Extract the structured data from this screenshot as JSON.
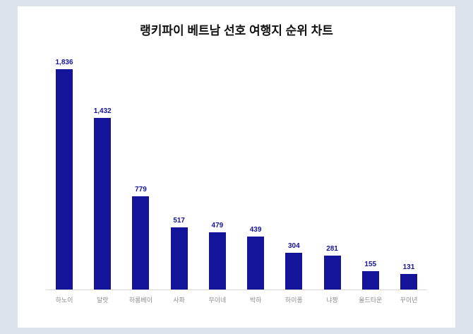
{
  "chart_data": {
    "type": "bar",
    "title": "랭키파이 베트남 선호 여행지 순위 차트",
    "categories": [
      "하노이",
      "달랏",
      "하롱베이",
      "사파",
      "무이네",
      "박하",
      "하이퐁",
      "냐짱",
      "올드타운",
      "꾸이년"
    ],
    "values": [
      1836,
      1432,
      779,
      517,
      479,
      439,
      304,
      281,
      155,
      131
    ],
    "value_labels": [
      "1,836",
      "1,432",
      "779",
      "517",
      "479",
      "439",
      "304",
      "281",
      "155",
      "131"
    ],
    "xlabel": "",
    "ylabel": "",
    "ylim": [
      0,
      1900
    ],
    "grid": false,
    "legend": false,
    "bar_color": "#14149b",
    "value_label_color": "#14149b",
    "category_label_color": "#8c8c8c"
  },
  "colors": {
    "page_background": "#dbe2ea",
    "panel_background": "#ffffff",
    "title_color": "#111111"
  }
}
